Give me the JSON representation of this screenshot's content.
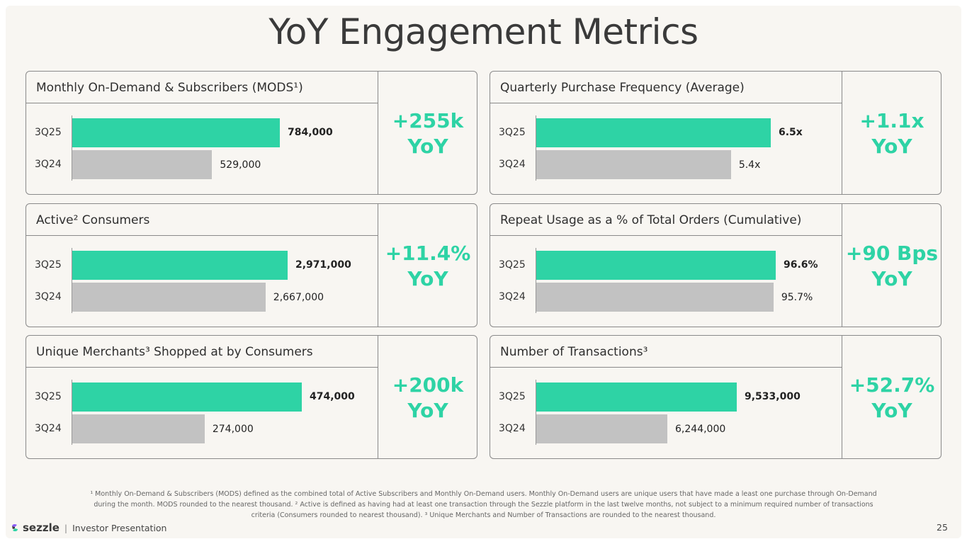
{
  "slide": {
    "title": "YoY Engagement Metrics",
    "footnote": "¹ Monthly On-Demand & Subscribers (MODS) defined as the combined total of Active Subscribers and Monthly On-Demand users. Monthly On-Demand users are unique users that have made a least one purchase through On-Demand during the month. MODS rounded to the nearest thousand. ² Active is defined as having had at least one transaction through the Sezzle platform in the last twelve months, not subject to a minimum required number of transactions criteria (Consumers rounded to nearest thousand). ³ Unique Merchants and Number of Transactions are rounded to the nearest thousand.",
    "brand": "sezzle",
    "brand_sep": "|",
    "brand_subtitle": "Investor Presentation",
    "page_number": "25",
    "colors": {
      "current": "#2ed3a5",
      "previous": "#c2c2c2",
      "accent": "#2ed3a5"
    }
  },
  "chart_data": [
    {
      "type": "bar",
      "title": "Monthly On-Demand & Subscribers (MODS¹)",
      "categories": [
        "3Q25",
        "3Q24"
      ],
      "values": [
        784000,
        529000
      ],
      "value_labels": [
        "784,000",
        "529,000"
      ],
      "yoy_line1": "+255k",
      "yoy_line2": "YoY"
    },
    {
      "type": "bar",
      "title": "Quarterly Purchase Frequency (Average)",
      "categories": [
        "3Q25",
        "3Q24"
      ],
      "values": [
        6.5,
        5.4
      ],
      "value_labels": [
        "6.5x",
        "5.4x"
      ],
      "yoy_line1": "+1.1x",
      "yoy_line2": "YoY"
    },
    {
      "type": "bar",
      "title": "Active² Consumers",
      "categories": [
        "3Q25",
        "3Q24"
      ],
      "values": [
        2971000,
        2667000
      ],
      "value_labels": [
        "2,971,000",
        "2,667,000"
      ],
      "yoy_line1": "+11.4%",
      "yoy_line2": "YoY"
    },
    {
      "type": "bar",
      "title": "Repeat Usage as a % of Total Orders (Cumulative)",
      "categories": [
        "3Q25",
        "3Q24"
      ],
      "values": [
        96.6,
        95.7
      ],
      "value_labels": [
        "96.6%",
        "95.7%"
      ],
      "yoy_line1": "+90 Bps",
      "yoy_line2": "YoY"
    },
    {
      "type": "bar",
      "title": "Unique Merchants³ Shopped at by Consumers",
      "categories": [
        "3Q25",
        "3Q24"
      ],
      "values": [
        474000,
        274000
      ],
      "value_labels": [
        "474,000",
        "274,000"
      ],
      "yoy_line1": "+200k",
      "yoy_line2": "YoY"
    },
    {
      "type": "bar",
      "title": "Number of Transactions³",
      "categories": [
        "3Q25",
        "3Q24"
      ],
      "values": [
        9533000,
        6244000
      ],
      "value_labels": [
        "9,533,000",
        "6,244,000"
      ],
      "yoy_line1": "+52.7%",
      "yoy_line2": "YoY"
    }
  ]
}
